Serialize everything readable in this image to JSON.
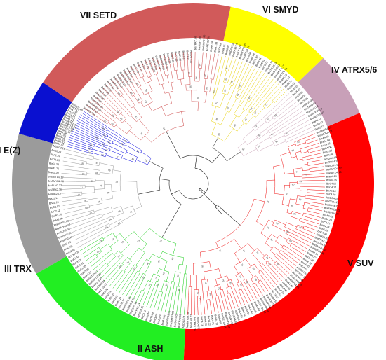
{
  "figure": {
    "type": "circular-phylogenetic-tree",
    "root_color": "#000000",
    "clades": [
      {
        "id": "I",
        "label": "I E(Z)",
        "color": "#0000dd",
        "band": "#0a10d0",
        "leaves": 18
      },
      {
        "id": "III",
        "label": "III TRX",
        "color": "#999999",
        "band": "#9b9b9b",
        "leaves": 26
      },
      {
        "id": "II",
        "label": "II ASH",
        "color": "#11cc11",
        "band": "#22ee22",
        "leaves": 34
      },
      {
        "id": "V",
        "label": "V SUV",
        "color": "#ee1111",
        "band": "#ff0000",
        "leaves": 78
      },
      {
        "id": "IV",
        "label": "IV ATRX5/6",
        "color": "#c8a0b4",
        "band": "#c8a0b8",
        "leaves": 13
      },
      {
        "id": "VI",
        "label": "VI SMYD",
        "color": "#e8d000",
        "band": "#ffff00",
        "leaves": 22
      },
      {
        "id": "VII",
        "label": "VII SETD",
        "color": "#cc4444",
        "band": "#d15a5a",
        "leaves": 40
      }
    ],
    "leaf_label_prefixes": [
      "BraA",
      "BraB",
      "BoC",
      "BoO",
      "BnA",
      "BnC",
      "AtSDG",
      "BraTRX",
      "BraSUV",
      "BraSMYD",
      "BraSETD"
    ]
  }
}
